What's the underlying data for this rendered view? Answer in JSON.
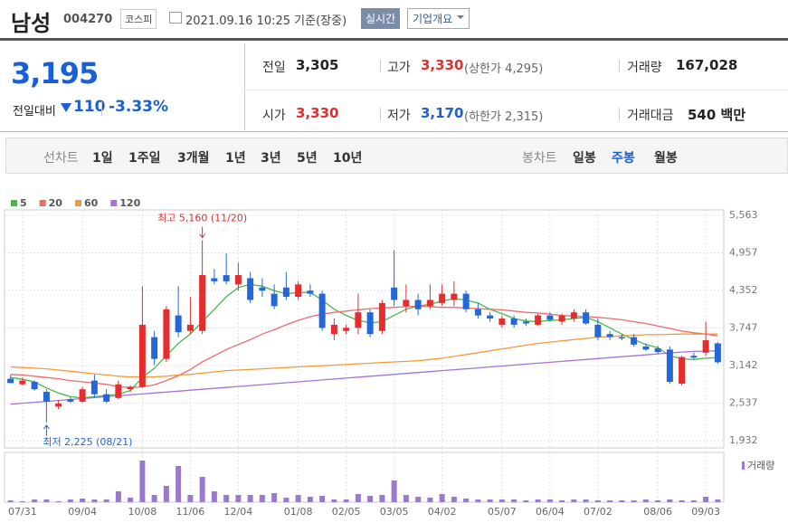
{
  "header": {
    "name": "남성",
    "code": "004270",
    "market": "코스피",
    "datetime": "2021.09.16 10:25 기준(장중)",
    "realtime": "실시간",
    "company": "기업개요"
  },
  "quote": {
    "price": "3,195",
    "change_label": "전일대비",
    "change": "110",
    "change_rate": "-3.33%",
    "stats": [
      {
        "label": "전일",
        "value": "3,305"
      },
      {
        "label": "고가",
        "value": "3,330",
        "note": "(상한가 4,295)"
      },
      {
        "label": "거래량",
        "value": "167,028"
      },
      {
        "label": "시가",
        "value": "3,330"
      },
      {
        "label": "저가",
        "value": "3,170",
        "note": "(하한가 2,315)"
      },
      {
        "label": "거래대금",
        "value": "540 백만"
      }
    ]
  },
  "tabs": {
    "line_label": "선차트",
    "line_items": [
      "1일",
      "1주일",
      "3개월",
      "1년",
      "3년",
      "5년",
      "10년"
    ],
    "candle_label": "봉차트",
    "candle_items": [
      "일봉",
      "주봉",
      "월봉"
    ]
  },
  "chart_data": {
    "type": "candlestick",
    "categories": [
      null,
      "07/31",
      null,
      null,
      null,
      null,
      "09/04",
      null,
      null,
      null,
      null,
      "10/08",
      null,
      null,
      null,
      "11/06",
      null,
      null,
      null,
      "12/04",
      null,
      null,
      null,
      null,
      "01/08",
      null,
      null,
      null,
      "02/05",
      null,
      null,
      null,
      "03/05",
      null,
      null,
      null,
      "04/02",
      null,
      null,
      null,
      null,
      "05/07",
      null,
      null,
      null,
      "06/04",
      null,
      null,
      null,
      "07/02",
      null,
      null,
      null,
      null,
      "08/06",
      null,
      null,
      null,
      "09/03",
      null
    ],
    "open": [
      2930,
      2840,
      2880,
      2720,
      2480,
      2600,
      2560,
      2900,
      2680,
      2620,
      2760,
      2800,
      3600,
      3250,
      3950,
      3700,
      3700,
      4550,
      4600,
      4450,
      4550,
      4400,
      4300,
      4400,
      4250,
      4350,
      4300,
      3650,
      3700,
      3750,
      4000,
      3700,
      4400,
      4100,
      4200,
      4100,
      4150,
      4200,
      4300,
      4050,
      3950,
      3800,
      3900,
      3850,
      3800,
      3950,
      3850,
      3900,
      4000,
      3800,
      3650,
      3600,
      3600,
      3450,
      3420,
      3400,
      2850,
      3300,
      3350,
      3500
    ],
    "high": [
      2990,
      2950,
      2900,
      2760,
      2590,
      2640,
      2800,
      3000,
      2760,
      2900,
      2820,
      4420,
      3700,
      4100,
      4420,
      4250,
      5160,
      4700,
      4950,
      4800,
      4650,
      4550,
      4450,
      4650,
      4500,
      4450,
      4350,
      3900,
      3800,
      4300,
      4050,
      4200,
      5000,
      4450,
      4300,
      4450,
      4450,
      4500,
      4350,
      4150,
      4000,
      3950,
      3950,
      3900,
      3980,
      4000,
      3980,
      4050,
      4050,
      3900,
      3700,
      3650,
      3650,
      3500,
      3460,
      3450,
      3300,
      3350,
      3850,
      3520
    ],
    "low": [
      2860,
      2820,
      2740,
      2225,
      2440,
      2540,
      2540,
      2620,
      2540,
      2600,
      2720,
      2780,
      3150,
      3200,
      3600,
      3650,
      3650,
      4450,
      4450,
      4350,
      4150,
      4250,
      4050,
      4200,
      4200,
      4250,
      3700,
      3550,
      3650,
      3650,
      3600,
      3650,
      4100,
      4000,
      3950,
      4050,
      4100,
      4100,
      4000,
      3900,
      3850,
      3750,
      3750,
      3780,
      3780,
      3850,
      3800,
      3850,
      3800,
      3550,
      3550,
      3550,
      3450,
      3380,
      3330,
      2850,
      2820,
      3250,
      3300,
      3170
    ],
    "close": [
      2860,
      2900,
      2760,
      2560,
      2530,
      2560,
      2760,
      2680,
      2560,
      2840,
      2800,
      3800,
      3250,
      4050,
      3680,
      3800,
      4600,
      4500,
      4500,
      4600,
      4200,
      4350,
      4100,
      4250,
      4450,
      4300,
      3750,
      3800,
      3750,
      4000,
      3650,
      4150,
      4200,
      4200,
      4050,
      4200,
      4300,
      4300,
      4050,
      3950,
      3900,
      3900,
      3800,
      3820,
      3950,
      3880,
      3950,
      4000,
      3820,
      3600,
      3600,
      3580,
      3480,
      3400,
      3360,
      2880,
      3280,
      3270,
      3550,
      3195
    ],
    "up_color": "#e52d2d",
    "down_color": "#2467d8",
    "ylim": [
      1932,
      5563
    ],
    "yticks": [
      {
        "value": 5563,
        "label": "5,563"
      },
      {
        "value": 4957,
        "label": "4,957"
      },
      {
        "value": 4352,
        "label": "4,352"
      },
      {
        "value": 3747,
        "label": "3,747"
      },
      {
        "value": 3142,
        "label": "3,142"
      },
      {
        "value": 2537,
        "label": "2,537"
      },
      {
        "value": 1932,
        "label": "1,932"
      }
    ],
    "grid": true,
    "series": [
      {
        "name": "5",
        "color": "#47b84d",
        "values": [
          2950,
          2920,
          2880,
          2780,
          2700,
          2640,
          2620,
          2640,
          2660,
          2680,
          2740,
          2950,
          3100,
          3300,
          3500,
          3650,
          3850,
          4050,
          4250,
          4400,
          4450,
          4420,
          4350,
          4300,
          4320,
          4320,
          4200,
          4050,
          3950,
          3870,
          3830,
          3850,
          3950,
          4050,
          4100,
          4130,
          4180,
          4220,
          4200,
          4150,
          4050,
          3980,
          3900,
          3860,
          3850,
          3870,
          3880,
          3900,
          3920,
          3850,
          3750,
          3650,
          3560,
          3480,
          3430,
          3300,
          3250,
          3240,
          3260,
          3270
        ]
      },
      {
        "name": "20",
        "color": "#ef6b6b",
        "values": [
          3000,
          2990,
          2970,
          2950,
          2930,
          2900,
          2880,
          2860,
          2840,
          2800,
          2790,
          2800,
          2830,
          2900,
          2980,
          3080,
          3200,
          3300,
          3400,
          3480,
          3560,
          3650,
          3720,
          3800,
          3870,
          3930,
          3970,
          4000,
          4020,
          4040,
          4060,
          4070,
          4080,
          4090,
          4100,
          4090,
          4080,
          4080,
          4070,
          4060,
          4050,
          4040,
          4020,
          4000,
          3990,
          3970,
          3950,
          3940,
          3930,
          3920,
          3900,
          3880,
          3850,
          3820,
          3780,
          3740,
          3700,
          3670,
          3650,
          3620
        ]
      },
      {
        "name": "60",
        "color": "#f59a3c",
        "values": [
          3120,
          3110,
          3100,
          3090,
          3070,
          3050,
          3030,
          3010,
          2990,
          2970,
          2960,
          2960,
          2960,
          2970,
          2990,
          3000,
          3020,
          3040,
          3060,
          3070,
          3080,
          3090,
          3100,
          3110,
          3120,
          3130,
          3140,
          3150,
          3160,
          3170,
          3180,
          3190,
          3200,
          3210,
          3220,
          3240,
          3260,
          3290,
          3320,
          3350,
          3380,
          3410,
          3440,
          3470,
          3500,
          3520,
          3540,
          3560,
          3580,
          3600,
          3610,
          3620,
          3630,
          3640,
          3640,
          3645,
          3650,
          3650,
          3650,
          3650
        ]
      },
      {
        "name": "120",
        "color": "#a772d6",
        "values": [
          2520,
          2535,
          2550,
          2565,
          2580,
          2595,
          2610,
          2625,
          2640,
          2655,
          2670,
          2685,
          2700,
          2715,
          2730,
          2745,
          2760,
          2775,
          2790,
          2805,
          2820,
          2835,
          2850,
          2865,
          2880,
          2895,
          2910,
          2925,
          2940,
          2955,
          2970,
          2985,
          3000,
          3015,
          3030,
          3045,
          3060,
          3075,
          3090,
          3105,
          3120,
          3135,
          3150,
          3165,
          3180,
          3195,
          3210,
          3225,
          3240,
          3255,
          3270,
          3285,
          3300,
          3315,
          3330,
          3345,
          3360,
          3370,
          3375,
          3380
        ]
      }
    ],
    "volume": {
      "name": "거래량",
      "color": "#9a79cf",
      "ylim": [
        0,
        5000000
      ],
      "values": [
        200000,
        100000,
        300000,
        300000,
        100000,
        300000,
        400000,
        300000,
        300000,
        1200000,
        500000,
        4600000,
        800000,
        1800000,
        4000000,
        800000,
        2800000,
        1200000,
        800000,
        800000,
        800000,
        800000,
        1000000,
        500000,
        800000,
        600000,
        700000,
        300000,
        300000,
        900000,
        700000,
        800000,
        2400000,
        800000,
        600000,
        500000,
        900000,
        600000,
        400000,
        300000,
        300000,
        300000,
        300000,
        200000,
        300000,
        300000,
        200000,
        300000,
        300000,
        200000,
        200000,
        200000,
        200000,
        300000,
        200000,
        300000,
        200000,
        200000,
        600000,
        300000
      ]
    },
    "annotations": {
      "high": "최고 5,160 (11/20)",
      "low": "최저 2,225 (08/21)"
    }
  }
}
